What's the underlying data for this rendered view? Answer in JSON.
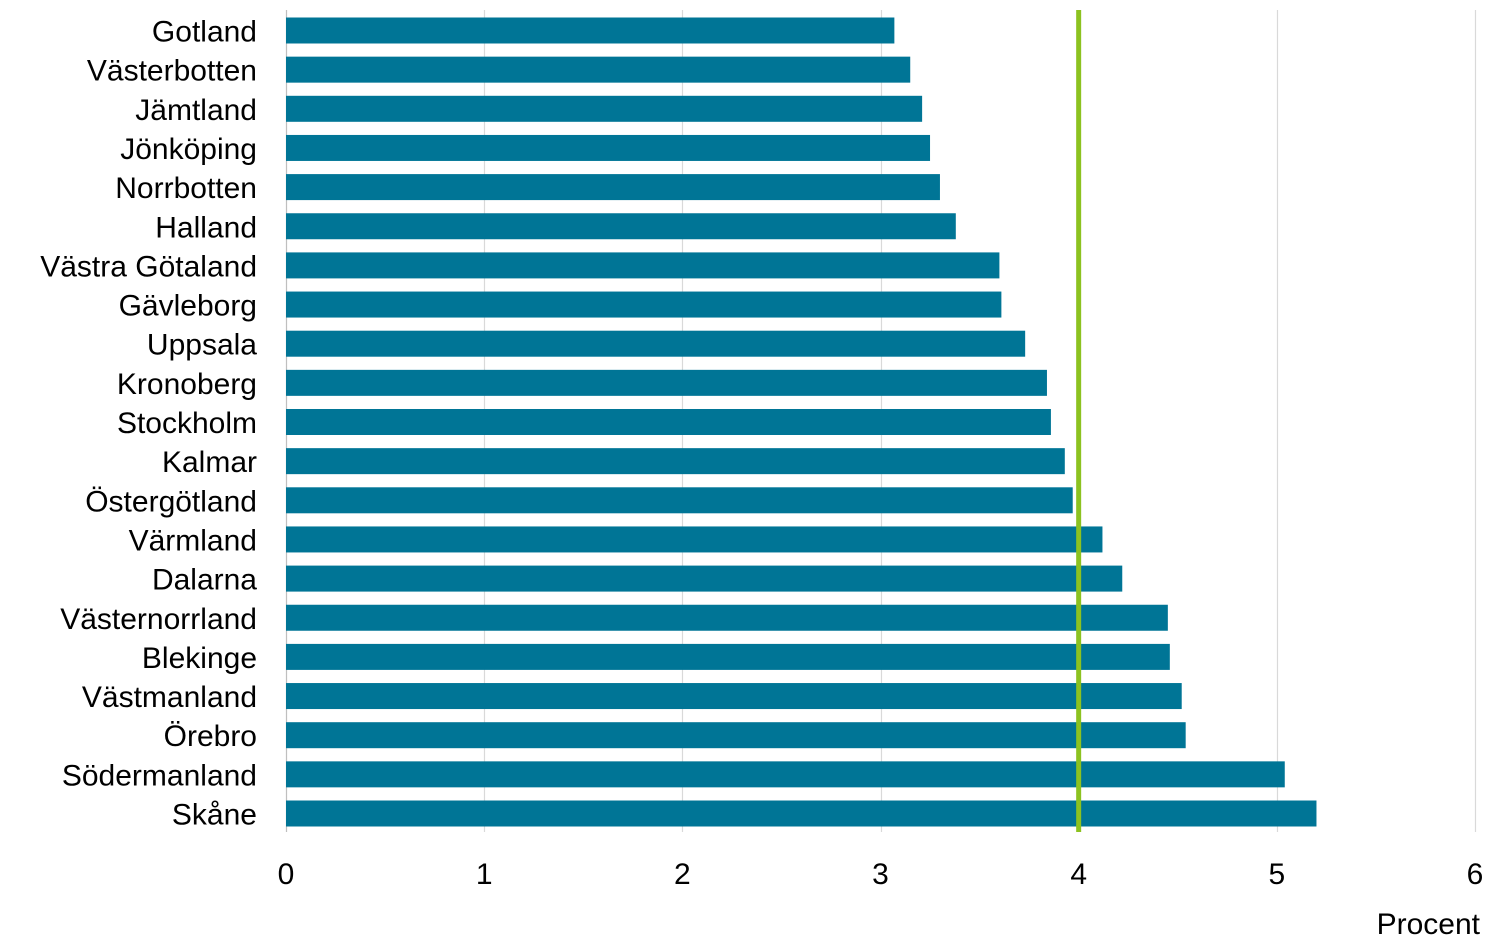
{
  "chart_data": {
    "type": "bar",
    "orientation": "horizontal",
    "categories": [
      "Gotland",
      "Västerbotten",
      "Jämtland",
      "Jönköping",
      "Norrbotten",
      "Halland",
      "Västra Götaland",
      "Gävleborg",
      "Uppsala",
      "Kronoberg",
      "Stockholm",
      "Kalmar",
      "Östergötland",
      "Värmland",
      "Dalarna",
      "Västernorrland",
      "Blekinge",
      "Västmanland",
      "Örebro",
      "Södermanland",
      "Skåne"
    ],
    "values": [
      3.07,
      3.15,
      3.21,
      3.25,
      3.3,
      3.38,
      3.6,
      3.61,
      3.73,
      3.84,
      3.86,
      3.93,
      3.97,
      4.12,
      4.22,
      4.45,
      4.46,
      4.52,
      4.54,
      5.04,
      5.2
    ],
    "xlabel": "Procent",
    "ylabel": "",
    "xlim": [
      0,
      6
    ],
    "xticks": [
      "0",
      "1",
      "2",
      "3",
      "4",
      "5",
      "6"
    ],
    "reference_line": {
      "value": 4.0
    },
    "grid": "vertical",
    "colors": {
      "bar": "#007596",
      "reference_line": "#8cc220",
      "grid": "#d9d9d9",
      "axis": "#bfbfbf"
    }
  }
}
